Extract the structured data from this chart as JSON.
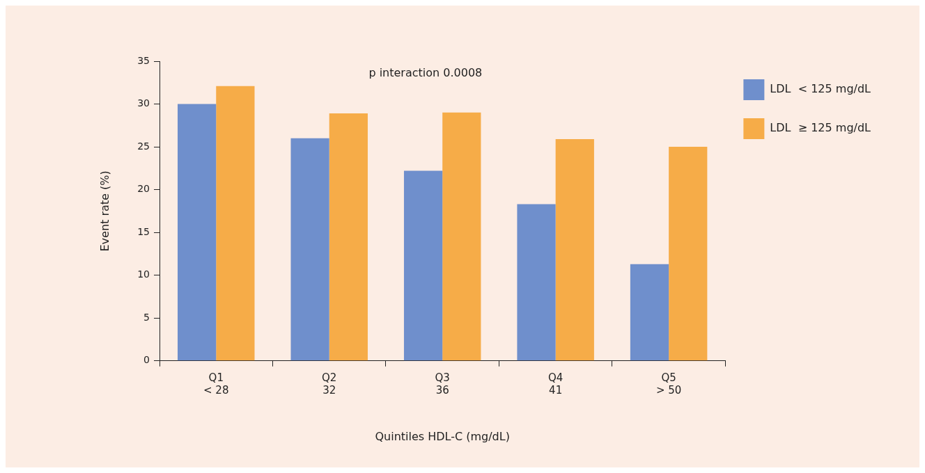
{
  "chart_data": {
    "type": "bar",
    "xlabel": "Quintiles HDL-C (mg/dL)",
    "ylabel": "Event rate (%)",
    "categories": [
      "Q1\n< 28",
      "Q2\n32",
      "Q3\n36",
      "Q4\n41",
      "Q5\n> 50"
    ],
    "series": [
      {
        "name": "LDL  < 125 mg/dL",
        "color": "#6f8fcc",
        "values": [
          30.0,
          26.0,
          22.2,
          18.3,
          11.3
        ]
      },
      {
        "name": "LDL  ≥ 125 mg/dL",
        "color": "#f6ac48",
        "values": [
          32.1,
          28.9,
          29.0,
          25.9,
          25.0
        ]
      }
    ],
    "ylim": [
      0,
      35
    ],
    "yticks": [
      0,
      5,
      10,
      15,
      20,
      25,
      30,
      35
    ],
    "annotations": [
      "p interaction 0.0008"
    ],
    "legend": "right",
    "grid": false
  }
}
